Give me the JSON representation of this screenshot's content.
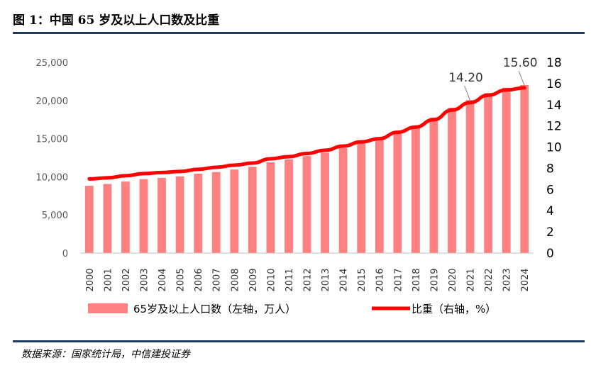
{
  "figure": {
    "title": "图 1：中国 65 岁及以上人口数及比重",
    "source": "数据来源：国家统计局，中信建投证券"
  },
  "colors": {
    "bar": "#ff8080",
    "line": "#ff0000",
    "rule": "#1f3a5f"
  },
  "chart_data": {
    "type": "bar",
    "categories": [
      "2000",
      "2001",
      "2002",
      "2003",
      "2004",
      "2005",
      "2006",
      "2007",
      "2008",
      "2009",
      "2010",
      "2011",
      "2012",
      "2013",
      "2014",
      "2015",
      "2016",
      "2017",
      "2018",
      "2019",
      "2020",
      "2021",
      "2022",
      "2023",
      "2024"
    ],
    "series": [
      {
        "name": "65岁及以上人口数（左轴，万人）",
        "type": "bar",
        "axis": "left",
        "values": [
          8821,
          9062,
          9377,
          9692,
          9857,
          10055,
          10419,
          10636,
          10956,
          11307,
          11894,
          12288,
          12714,
          13161,
          13755,
          14386,
          15003,
          15831,
          16658,
          17767,
          19064,
          20056,
          20978,
          21676,
          22023
        ]
      },
      {
        "name": "比重（右轴，%）",
        "type": "line",
        "axis": "right",
        "values": [
          7.0,
          7.1,
          7.3,
          7.5,
          7.6,
          7.7,
          7.9,
          8.1,
          8.3,
          8.5,
          8.9,
          9.1,
          9.4,
          9.7,
          10.1,
          10.5,
          10.8,
          11.4,
          11.9,
          12.6,
          13.5,
          14.2,
          14.9,
          15.4,
          15.6
        ]
      }
    ],
    "y_left": {
      "min": 0,
      "max": 25000,
      "ticks": [
        "0",
        "5,000",
        "10,000",
        "15,000",
        "20,000",
        "25,000"
      ]
    },
    "y_right": {
      "min": 0,
      "max": 18,
      "ticks": [
        "0",
        "2",
        "4",
        "6",
        "8",
        "10",
        "12",
        "14",
        "16",
        "18"
      ]
    },
    "annotations": [
      {
        "text": "14.20",
        "category": "2021"
      },
      {
        "text": "15.60",
        "category": "2024"
      }
    ],
    "grid": false,
    "legend": "bottom"
  }
}
